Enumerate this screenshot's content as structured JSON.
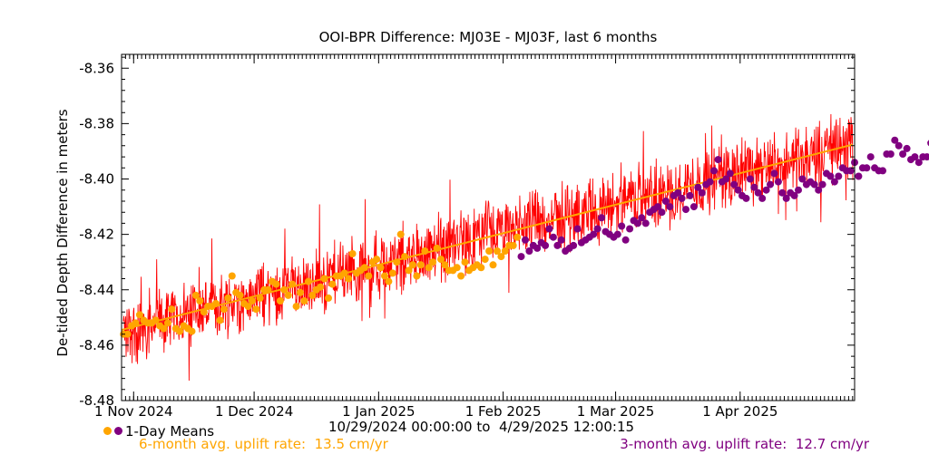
{
  "chart_data": {
    "type": "scatter",
    "title": "OOI-BPR Difference: MJ03E - MJ03F, last 6 months",
    "ylabel": "De-tided Depth Difference in meters",
    "xlabel": "",
    "xlim": [
      "2024-10-29T00:00:00",
      "2025-04-29T12:00:15"
    ],
    "ylim": [
      -8.48,
      -8.355
    ],
    "y_ticks": [
      -8.36,
      -8.38,
      -8.4,
      -8.42,
      -8.44,
      -8.46,
      -8.48
    ],
    "y_tick_labels": [
      "-8.36",
      "-8.38",
      "-8.40",
      "-8.42",
      "-8.44",
      "-8.46",
      "-8.48"
    ],
    "x_ticks": [
      {
        "date": "2024-11-01",
        "label": "1 Nov 2024"
      },
      {
        "date": "2024-12-01",
        "label": "1 Dec 2024"
      },
      {
        "date": "2025-01-01",
        "label": "1 Jan 2025"
      },
      {
        "date": "2025-02-01",
        "label": "1 Feb 2025"
      },
      {
        "date": "2025-03-01",
        "label": "1 Mar 2025"
      },
      {
        "date": "2025-04-01",
        "label": "1 Apr 2025"
      }
    ],
    "grid": false,
    "colors": {
      "raw": "#ff0000",
      "six_month": "#ffa500",
      "three_month": "#800080",
      "fit": "#ffa500"
    },
    "series": [
      {
        "name": "1-Day Means",
        "type": "scatter",
        "color_6mo": "#ffa500",
        "color_3mo": "#800080",
        "three_month_start": "2025-02-05",
        "values": [
          -8.456,
          -8.456,
          -8.453,
          -8.452,
          -8.449,
          -8.451,
          -8.452,
          -8.452,
          -8.451,
          -8.453,
          -8.454,
          -8.452,
          -8.447,
          -8.454,
          -8.455,
          -8.453,
          -8.454,
          -8.455,
          -8.442,
          -8.444,
          -8.448,
          -8.446,
          -8.446,
          -8.445,
          -8.451,
          -8.447,
          -8.443,
          -8.435,
          -8.441,
          -8.442,
          -8.445,
          -8.446,
          -8.444,
          -8.447,
          -8.443,
          -8.44,
          -8.44,
          -8.437,
          -8.438,
          -8.444,
          -8.44,
          -8.442,
          -8.438,
          -8.446,
          -8.441,
          -8.444,
          -8.437,
          -8.442,
          -8.44,
          -8.439,
          -8.436,
          -8.443,
          -8.438,
          -8.435,
          -8.435,
          -8.434,
          -8.436,
          -8.427,
          -8.434,
          -8.433,
          -8.432,
          -8.435,
          -8.43,
          -8.429,
          -8.432,
          -8.435,
          -8.437,
          -8.434,
          -8.43,
          -8.42,
          -8.428,
          -8.433,
          -8.431,
          -8.435,
          -8.431,
          -8.426,
          -8.432,
          -8.43,
          -8.425,
          -8.429,
          -8.431,
          -8.433,
          -8.433,
          -8.432,
          -8.435,
          -8.43,
          -8.433,
          -8.432,
          -8.431,
          -8.432,
          -8.429,
          -8.426,
          -8.431,
          -8.426,
          -8.428,
          -8.426,
          -8.424,
          -8.424,
          -8.421,
          -8.428,
          -8.422,
          -8.426,
          -8.424,
          -8.425,
          -8.423,
          -8.424,
          -8.418,
          -8.421,
          -8.424,
          -8.422,
          -8.426,
          -8.425,
          -8.424,
          -8.418,
          -8.423,
          -8.422,
          -8.421,
          -8.42,
          -8.418,
          -8.414,
          -8.419,
          -8.42,
          -8.421,
          -8.42,
          -8.417,
          -8.422,
          -8.418,
          -8.415,
          -8.416,
          -8.414,
          -8.416,
          -8.412,
          -8.411,
          -8.41,
          -8.412,
          -8.408,
          -8.41,
          -8.406,
          -8.405,
          -8.407,
          -8.411,
          -8.406,
          -8.41,
          -8.403,
          -8.405,
          -8.402,
          -8.401,
          -8.397,
          -8.393,
          -8.401,
          -8.4,
          -8.398,
          -8.402,
          -8.404,
          -8.406,
          -8.407,
          -8.4,
          -8.403,
          -8.405,
          -8.407,
          -8.404,
          -8.402,
          -8.398,
          -8.401,
          -8.405,
          -8.407,
          -8.405,
          -8.406,
          -8.404,
          -8.4,
          -8.402,
          -8.401,
          -8.402,
          -8.404,
          -8.402,
          -8.398,
          -8.399,
          -8.401,
          -8.399,
          -8.396,
          -8.397,
          -8.397,
          -8.394,
          -8.399,
          -8.396,
          -8.396,
          -8.392,
          -8.396,
          -8.397,
          -8.397,
          -8.391,
          -8.391,
          -8.386,
          -8.388,
          -8.391,
          -8.389,
          -8.393,
          -8.392,
          -8.394,
          -8.392,
          -8.392,
          -8.387,
          -8.391,
          -8.39,
          -8.39,
          -8.386,
          -8.389,
          -8.388,
          -8.389,
          -8.389
        ]
      },
      {
        "name": "fit",
        "type": "line",
        "start": {
          "date": "2024-10-29",
          "value": -8.4545
        },
        "end": {
          "date": "2025-04-29",
          "value": -8.3876
        }
      }
    ]
  },
  "footer": {
    "legend_label": "1-Day Means",
    "range_start": "10/29/2024 00:00:00",
    "range_to": "to",
    "range_end": "4/29/2025 12:00:15",
    "six_month_label": "6-month avg. uplift rate:",
    "six_month_value": "13.5 cm/yr",
    "three_month_label": "3-month avg. uplift rate:",
    "three_month_value": "12.7 cm/yr"
  }
}
